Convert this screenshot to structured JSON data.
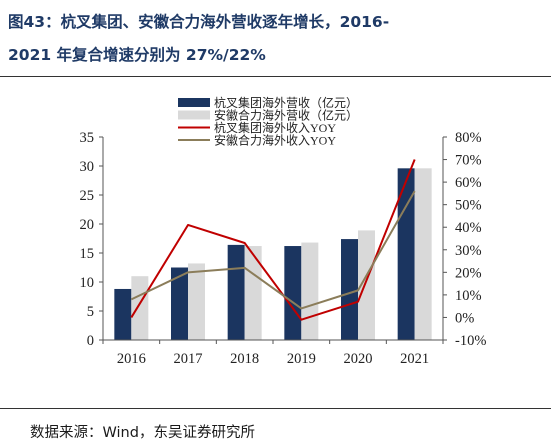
{
  "figure": {
    "title_line1": "图43：杭叉集团、安徽合力海外营收逐年增长，2016-",
    "title_line2": "2021 年复合增速分别为 27%/22%",
    "source": "数据来源：Wind，东吴证券研究所"
  },
  "chart_data": {
    "type": "bar",
    "categories": [
      "2016",
      "2017",
      "2018",
      "2019",
      "2020",
      "2021"
    ],
    "series": [
      {
        "name": "杭叉集团海外营收（亿元）",
        "kind": "bar",
        "axis": "left",
        "color": "#1b3560",
        "values": [
          8.8,
          12.5,
          16.4,
          16.2,
          17.4,
          29.6
        ]
      },
      {
        "name": "安徽合力海外营收（亿元）",
        "kind": "bar",
        "axis": "left",
        "color": "#d9d9d9",
        "values": [
          11.0,
          13.2,
          16.2,
          16.8,
          18.9,
          29.6
        ]
      },
      {
        "name": "杭叉集团海外收入YOY",
        "kind": "line",
        "axis": "right",
        "color": "#c00000",
        "values": [
          0.0,
          41.0,
          33.0,
          -1.0,
          7.0,
          70.0
        ]
      },
      {
        "name": "安徽合力海外收入YOY",
        "kind": "line",
        "axis": "right",
        "color": "#8b7d5a",
        "values": [
          8.0,
          20.0,
          22.0,
          4.0,
          12.0,
          56.0
        ]
      }
    ],
    "y_left": {
      "min": 0,
      "max": 35,
      "step": 5,
      "ticks": [
        "0",
        "5",
        "10",
        "15",
        "20",
        "25",
        "30",
        "35"
      ]
    },
    "y_right": {
      "min": -10,
      "max": 80,
      "step": 10,
      "unit": "%",
      "ticks": [
        "-10%",
        "0%",
        "10%",
        "20%",
        "30%",
        "40%",
        "50%",
        "60%",
        "70%",
        "80%"
      ]
    },
    "grid": false,
    "legend_position": "top-center"
  }
}
